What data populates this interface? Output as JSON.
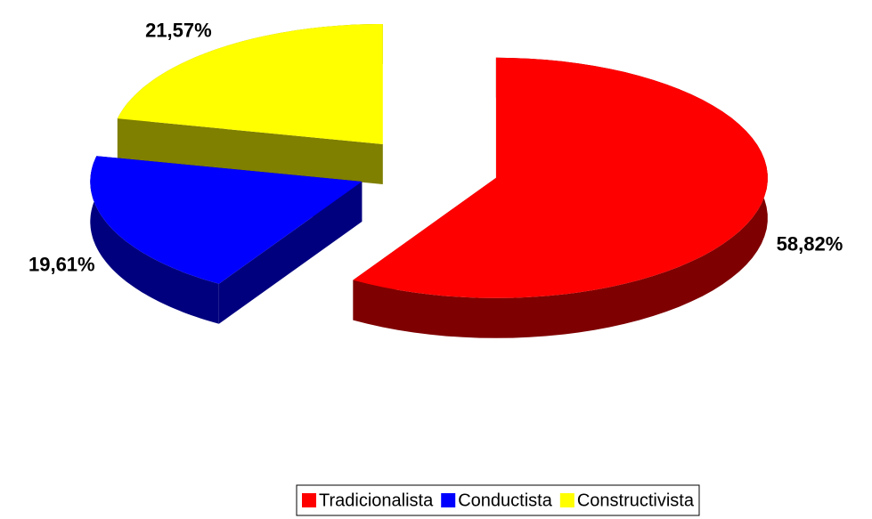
{
  "chart_data": {
    "type": "pie",
    "categories": [
      "Tradicionalista",
      "Conductista",
      "Constructivista"
    ],
    "values": [
      58.82,
      19.61,
      21.57
    ],
    "value_labels": [
      "58,82%",
      "19,61%",
      "21,57%"
    ],
    "colors": [
      "#ff0000",
      "#0000ff",
      "#ffff00"
    ],
    "legend": "bottom"
  }
}
